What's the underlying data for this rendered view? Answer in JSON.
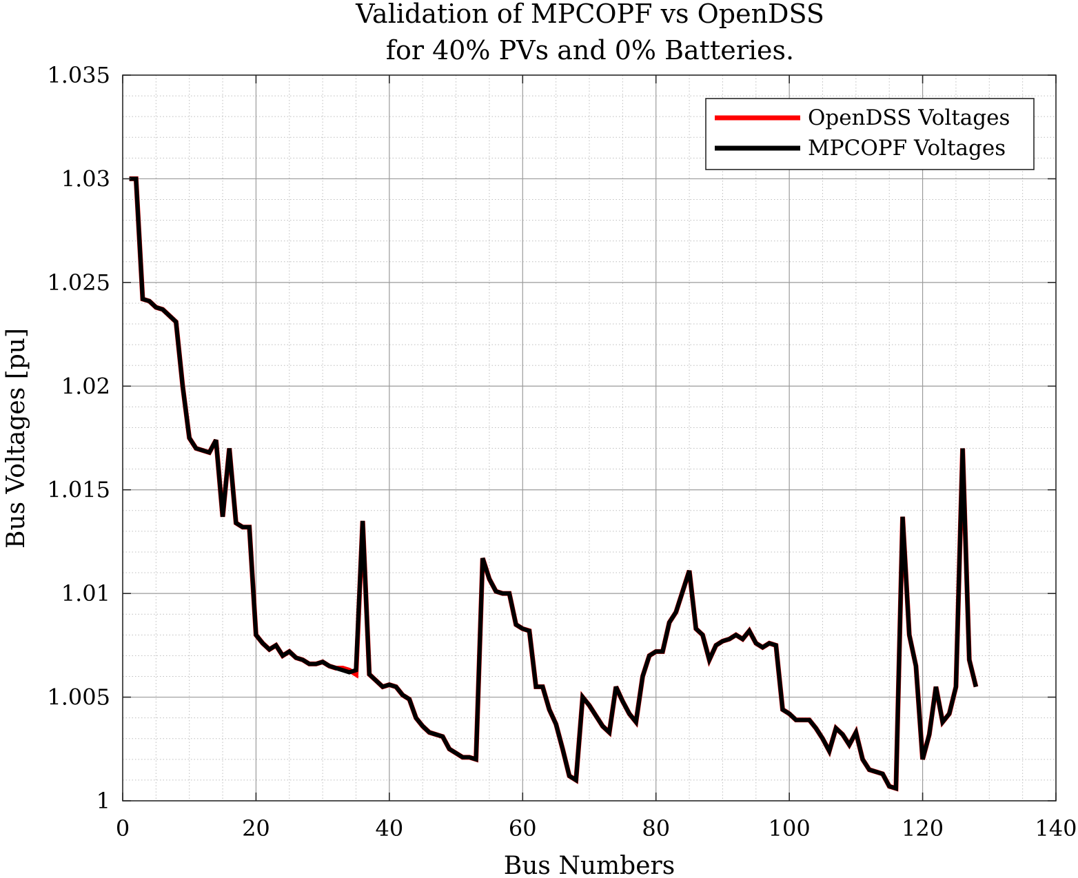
{
  "chart_data": {
    "type": "line",
    "title": [
      "Validation of MPCOPF vs OpenDSS",
      "for 40% PVs and 0% Batteries."
    ],
    "xlabel": "Bus Numbers",
    "ylabel": "Bus Voltages [pu]",
    "xlim": [
      0,
      140
    ],
    "ylim": [
      1.0,
      1.035
    ],
    "xticks": [
      0,
      20,
      40,
      60,
      80,
      100,
      120,
      140
    ],
    "xtick_labels": [
      "0",
      "20",
      "40",
      "60",
      "80",
      "100",
      "120",
      "140"
    ],
    "yticks": [
      1.0,
      1.005,
      1.01,
      1.015,
      1.02,
      1.025,
      1.03,
      1.035
    ],
    "ytick_labels": [
      "1",
      "1.005",
      "1.01",
      "1.015",
      "1.02",
      "1.025",
      "1.03",
      "1.035"
    ],
    "grid": true,
    "minor_grid": true,
    "legend_position": "top-right",
    "x": [
      1,
      2,
      3,
      4,
      5,
      6,
      7,
      8,
      9,
      10,
      11,
      12,
      13,
      14,
      15,
      16,
      17,
      18,
      19,
      20,
      21,
      22,
      23,
      24,
      25,
      26,
      27,
      28,
      29,
      30,
      31,
      32,
      33,
      34,
      35,
      36,
      37,
      38,
      39,
      40,
      41,
      42,
      43,
      44,
      45,
      46,
      47,
      48,
      49,
      50,
      51,
      52,
      53,
      54,
      55,
      56,
      57,
      58,
      59,
      60,
      61,
      62,
      63,
      64,
      65,
      66,
      67,
      68,
      69,
      70,
      71,
      72,
      73,
      74,
      75,
      76,
      77,
      78,
      79,
      80,
      81,
      82,
      83,
      84,
      85,
      86,
      87,
      88,
      89,
      90,
      91,
      92,
      93,
      94,
      95,
      96,
      97,
      98,
      99,
      100,
      101,
      102,
      103,
      104,
      105,
      106,
      107,
      108,
      109,
      110,
      111,
      112,
      113,
      114,
      115,
      116,
      117,
      118,
      119,
      120,
      121,
      122,
      123,
      124,
      125,
      126,
      127,
      128
    ],
    "series": [
      {
        "name": "OpenDSS Voltages",
        "color": "#ff0000",
        "values": [
          1.03,
          1.03,
          1.0242,
          1.0241,
          1.0238,
          1.0237,
          1.0234,
          1.0231,
          1.02,
          1.0175,
          1.017,
          1.0169,
          1.0168,
          1.0174,
          1.0137,
          1.017,
          1.0134,
          1.0132,
          1.0132,
          1.008,
          1.0076,
          1.0073,
          1.0075,
          1.007,
          1.0072,
          1.0069,
          1.0068,
          1.0066,
          1.0066,
          1.0067,
          1.0065,
          1.0064,
          1.0064,
          1.0063,
          1.0061,
          1.0135,
          1.0061,
          1.0058,
          1.0055,
          1.0056,
          1.0055,
          1.0051,
          1.0049,
          1.004,
          1.0036,
          1.0033,
          1.0032,
          1.0031,
          1.0025,
          1.0023,
          1.0021,
          1.0021,
          1.002,
          1.0117,
          1.0107,
          1.0101,
          1.01,
          1.01,
          1.0085,
          1.0083,
          1.0082,
          1.0055,
          1.0055,
          1.0044,
          1.0037,
          1.0025,
          1.0012,
          1.001,
          1.005,
          1.0046,
          1.0041,
          1.0036,
          1.0033,
          1.0055,
          1.0048,
          1.0042,
          1.0038,
          1.006,
          1.007,
          1.0072,
          1.0072,
          1.0086,
          1.0091,
          1.0101,
          1.0111,
          1.0083,
          1.008,
          1.0068,
          1.0075,
          1.0077,
          1.0078,
          1.008,
          1.0078,
          1.0082,
          1.0076,
          1.0074,
          1.0076,
          1.0075,
          1.0044,
          1.0042,
          1.0039,
          1.0039,
          1.0039,
          1.0035,
          1.003,
          1.0024,
          1.0035,
          1.0032,
          1.0027,
          1.0033,
          1.002,
          1.0015,
          1.0014,
          1.0013,
          1.0007,
          1.0006,
          1.0137,
          1.008,
          1.0065,
          1.002,
          1.0032,
          1.0055,
          1.0038,
          1.0042,
          1.0055,
          1.017,
          1.0068,
          1.0055
        ]
      },
      {
        "name": "MPCOPF Voltages",
        "color": "#000000",
        "values": [
          1.03,
          1.03,
          1.0242,
          1.0241,
          1.0238,
          1.0237,
          1.0234,
          1.0231,
          1.02,
          1.0175,
          1.017,
          1.0169,
          1.0168,
          1.0174,
          1.0137,
          1.017,
          1.0134,
          1.0132,
          1.0132,
          1.008,
          1.0076,
          1.0073,
          1.0075,
          1.007,
          1.0072,
          1.0069,
          1.0068,
          1.0066,
          1.0066,
          1.0067,
          1.0065,
          1.0064,
          1.0063,
          1.0062,
          1.0063,
          1.0135,
          1.0061,
          1.0058,
          1.0055,
          1.0056,
          1.0055,
          1.0051,
          1.0049,
          1.004,
          1.0036,
          1.0033,
          1.0032,
          1.0031,
          1.0025,
          1.0023,
          1.0021,
          1.0021,
          1.002,
          1.0117,
          1.0107,
          1.0101,
          1.01,
          1.01,
          1.0085,
          1.0083,
          1.0082,
          1.0055,
          1.0055,
          1.0044,
          1.0037,
          1.0025,
          1.0012,
          1.001,
          1.005,
          1.0046,
          1.0041,
          1.0036,
          1.0033,
          1.0055,
          1.0048,
          1.0042,
          1.0038,
          1.006,
          1.007,
          1.0072,
          1.0072,
          1.0086,
          1.0091,
          1.0101,
          1.0111,
          1.0083,
          1.008,
          1.0068,
          1.0075,
          1.0077,
          1.0078,
          1.008,
          1.0078,
          1.0082,
          1.0076,
          1.0074,
          1.0076,
          1.0075,
          1.0044,
          1.0042,
          1.0039,
          1.0039,
          1.0039,
          1.0035,
          1.003,
          1.0024,
          1.0035,
          1.0032,
          1.0027,
          1.0033,
          1.002,
          1.0015,
          1.0014,
          1.0013,
          1.0007,
          1.0006,
          1.0137,
          1.008,
          1.0065,
          1.002,
          1.0032,
          1.0055,
          1.0038,
          1.0042,
          1.0055,
          1.017,
          1.0068,
          1.0055
        ]
      }
    ]
  }
}
